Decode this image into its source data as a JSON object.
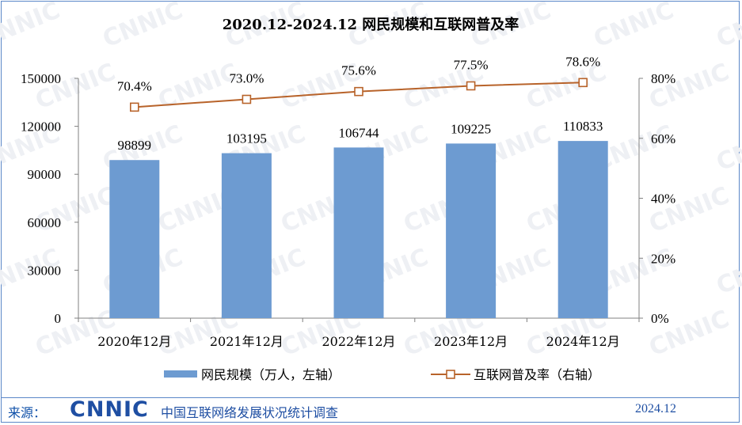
{
  "chart_data": {
    "type": "bar",
    "title": "2020.12-2024.12 网民规模和互联网普及率",
    "categories": [
      "2020年12月",
      "2021年12月",
      "2022年12月",
      "2023年12月",
      "2024年12月"
    ],
    "series": [
      {
        "name": "网民规模（万人，左轴）",
        "type": "bar",
        "axis": "left",
        "color": "#6d9bd1",
        "values": [
          98899,
          103195,
          106744,
          109225,
          110833
        ],
        "labels": [
          "98899",
          "103195",
          "106744",
          "109225",
          "110833"
        ]
      },
      {
        "name": "互联网普及率（右轴）",
        "type": "line",
        "axis": "right",
        "color": "#b8632a",
        "values": [
          70.4,
          73.0,
          75.6,
          77.5,
          78.6
        ],
        "labels": [
          "70.4%",
          "73.0%",
          "75.6%",
          "77.5%",
          "78.6%"
        ]
      }
    ],
    "y_left": {
      "range": [
        0,
        150000
      ],
      "ticks": [
        "0",
        "30000",
        "60000",
        "90000",
        "120000",
        "150000"
      ]
    },
    "y_right": {
      "range": [
        0,
        80
      ],
      "ticks": [
        "0%",
        "20%",
        "40%",
        "60%",
        "80%"
      ]
    },
    "legend_position": "bottom",
    "grid": false
  },
  "watermark": "CNNIC",
  "footer": {
    "source_label": "来源：",
    "logo_text": "CNNIC",
    "organization": "中国互联网络发展状况统计调查",
    "date": "2024.12"
  }
}
